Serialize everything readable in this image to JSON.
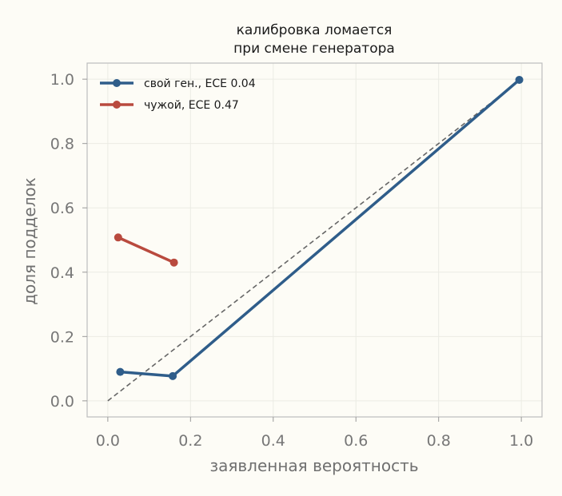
{
  "chart_data": {
    "type": "line",
    "title_lines": [
      "калибровка ломается",
      "при смене генератора"
    ],
    "xlabel": "заявленная вероятность",
    "ylabel": "доля подделок",
    "xlim": [
      -0.05,
      1.05
    ],
    "ylim": [
      -0.05,
      1.05
    ],
    "xticks": [
      "0.0",
      "0.2",
      "0.4",
      "0.6",
      "0.8",
      "1.0"
    ],
    "yticks": [
      "0.0",
      "0.2",
      "0.4",
      "0.6",
      "0.8",
      "1.0"
    ],
    "grid": true,
    "legend_position": "top-left",
    "reference_line": {
      "x": [
        0,
        1
      ],
      "y": [
        0,
        1
      ],
      "style": "dashed",
      "color": "#666666"
    },
    "series": [
      {
        "name": "свой ген., ECE 0.04",
        "color": "#2f5d8a",
        "x": [
          0.03,
          0.157,
          0.995
        ],
        "y": [
          0.09,
          0.077,
          0.998
        ]
      },
      {
        "name": "чужой, ECE 0.47",
        "color": "#b94a3e",
        "x": [
          0.025,
          0.16
        ],
        "y": [
          0.508,
          0.43
        ]
      }
    ]
  }
}
